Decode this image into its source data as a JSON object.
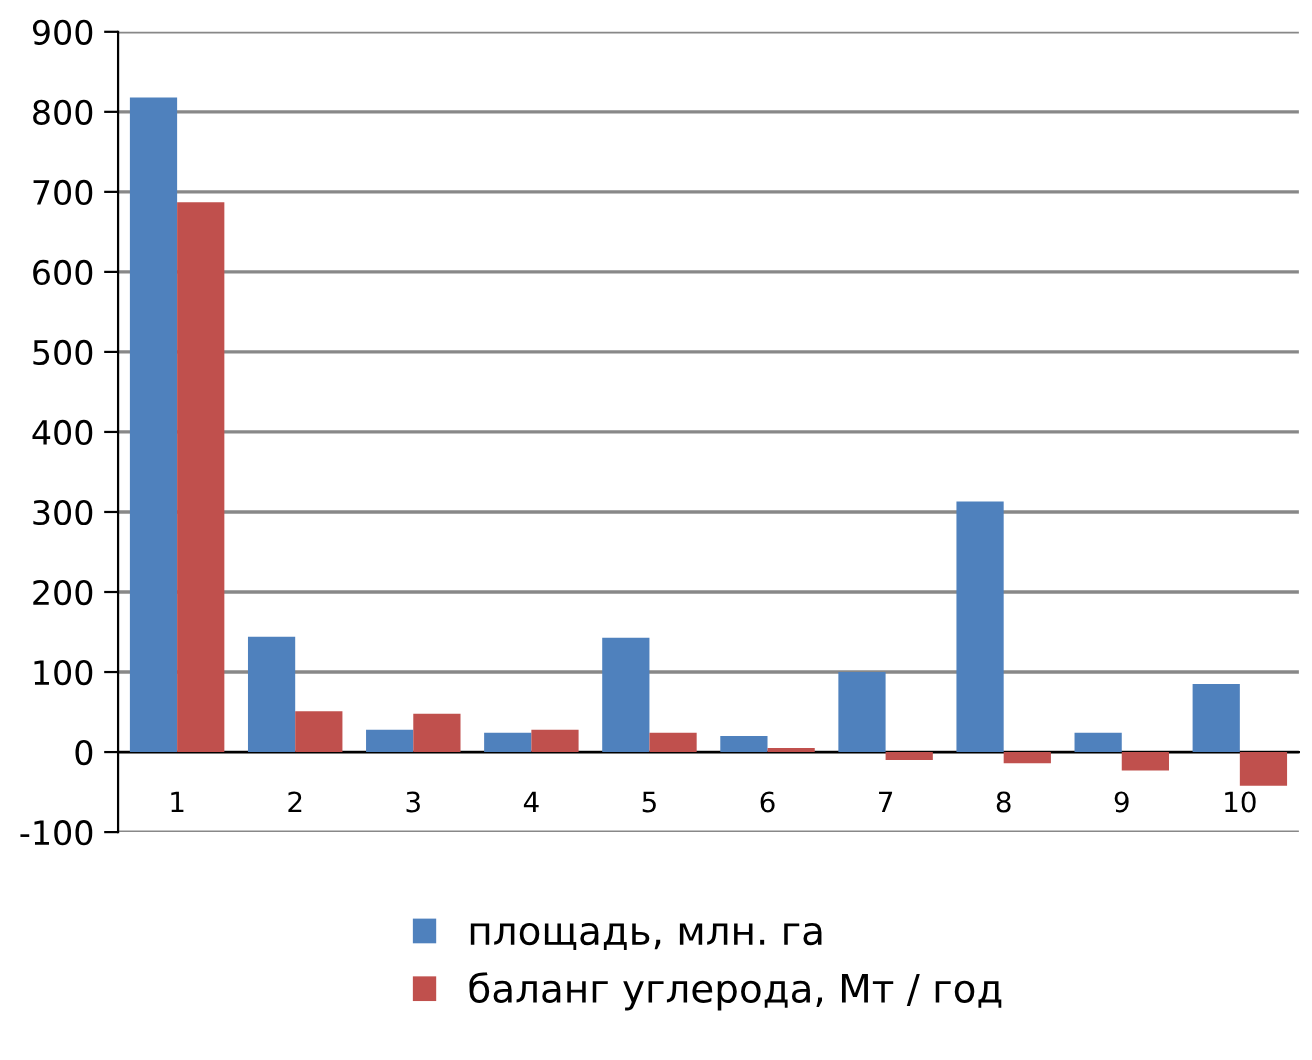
{
  "chart_data": {
    "type": "bar",
    "categories": [
      "1",
      "2",
      "3",
      "4",
      "5",
      "6",
      "7",
      "8",
      "9",
      "10"
    ],
    "series": [
      {
        "name": "площадь, млн. га",
        "color": "#4f81bd",
        "values": [
          818,
          144,
          28,
          24,
          143,
          20,
          100,
          313,
          24,
          85
        ]
      },
      {
        "name": "баланг углерода, Мт / год",
        "color": "#c0504d",
        "values": [
          687,
          51,
          48,
          28,
          24,
          5,
          -10,
          -14,
          -23,
          -42
        ]
      }
    ],
    "ylim": [
      -100,
      900
    ],
    "yticks": [
      -100,
      0,
      100,
      200,
      300,
      400,
      500,
      600,
      700,
      800,
      900
    ],
    "grid": "y",
    "legend": "bottom"
  }
}
